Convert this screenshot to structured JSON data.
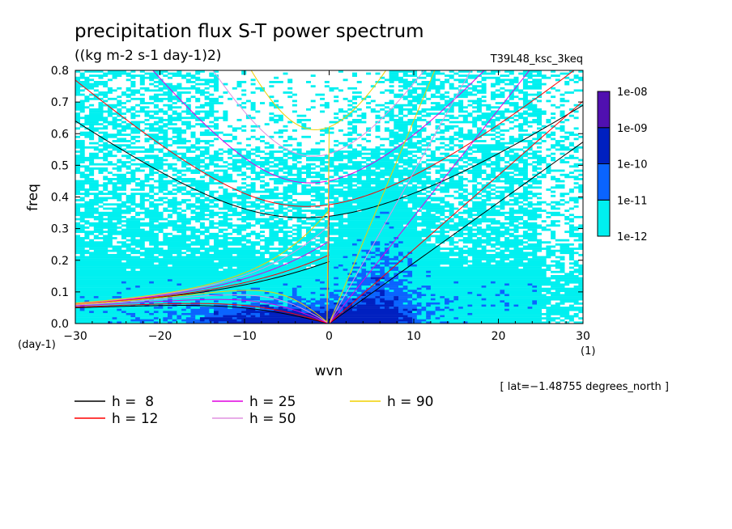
{
  "chart_data": {
    "type": "heatmap",
    "title": "precipitation flux S-T power spectrum",
    "units": "((kg m-2 s-1 day-1)2)",
    "run_label": "T39L48_ksc_3keq",
    "xlabel": "wvn",
    "ylabel": "freq",
    "x_unit": "(1)",
    "y_unit": "(day-1)",
    "xlim": [
      -30,
      30
    ],
    "ylim": [
      0,
      0.8
    ],
    "x_ticks": [
      -30,
      -20,
      -10,
      0,
      10,
      20,
      30
    ],
    "x_tick_labels": [
      "−30",
      "−20",
      "−10",
      "0",
      "10",
      "20",
      "30"
    ],
    "y_ticks": [
      0.0,
      0.1,
      0.2,
      0.3,
      0.4,
      0.5,
      0.6,
      0.7,
      0.8
    ],
    "y_tick_labels": [
      "0.0",
      "0.1",
      "0.2",
      "0.3",
      "0.4",
      "0.5",
      "0.6",
      "0.7",
      "0.8"
    ],
    "annotation": "[ lat=−1.48755 degrees_north ]",
    "colorbar": {
      "levels": [
        "1e-12",
        "1e-11",
        "1e-10",
        "1e-09",
        "1e-08"
      ],
      "colors": [
        "#00f0f0",
        "#0a64ff",
        "#0020c0",
        "#5010b0"
      ]
    },
    "dispersion_curves": [
      {
        "label": "h =  8",
        "h": 8,
        "color": "#000000"
      },
      {
        "label": "h = 12",
        "h": 12,
        "color": "#ff0000"
      },
      {
        "label": "h = 25",
        "h": 25,
        "color": "#e000e0"
      },
      {
        "label": "h = 50",
        "h": 50,
        "color": "#e090e0"
      },
      {
        "label": "h = 90",
        "h": 90,
        "color": "#f0d000"
      }
    ],
    "grid": false,
    "legend_position": "bottom-left"
  }
}
